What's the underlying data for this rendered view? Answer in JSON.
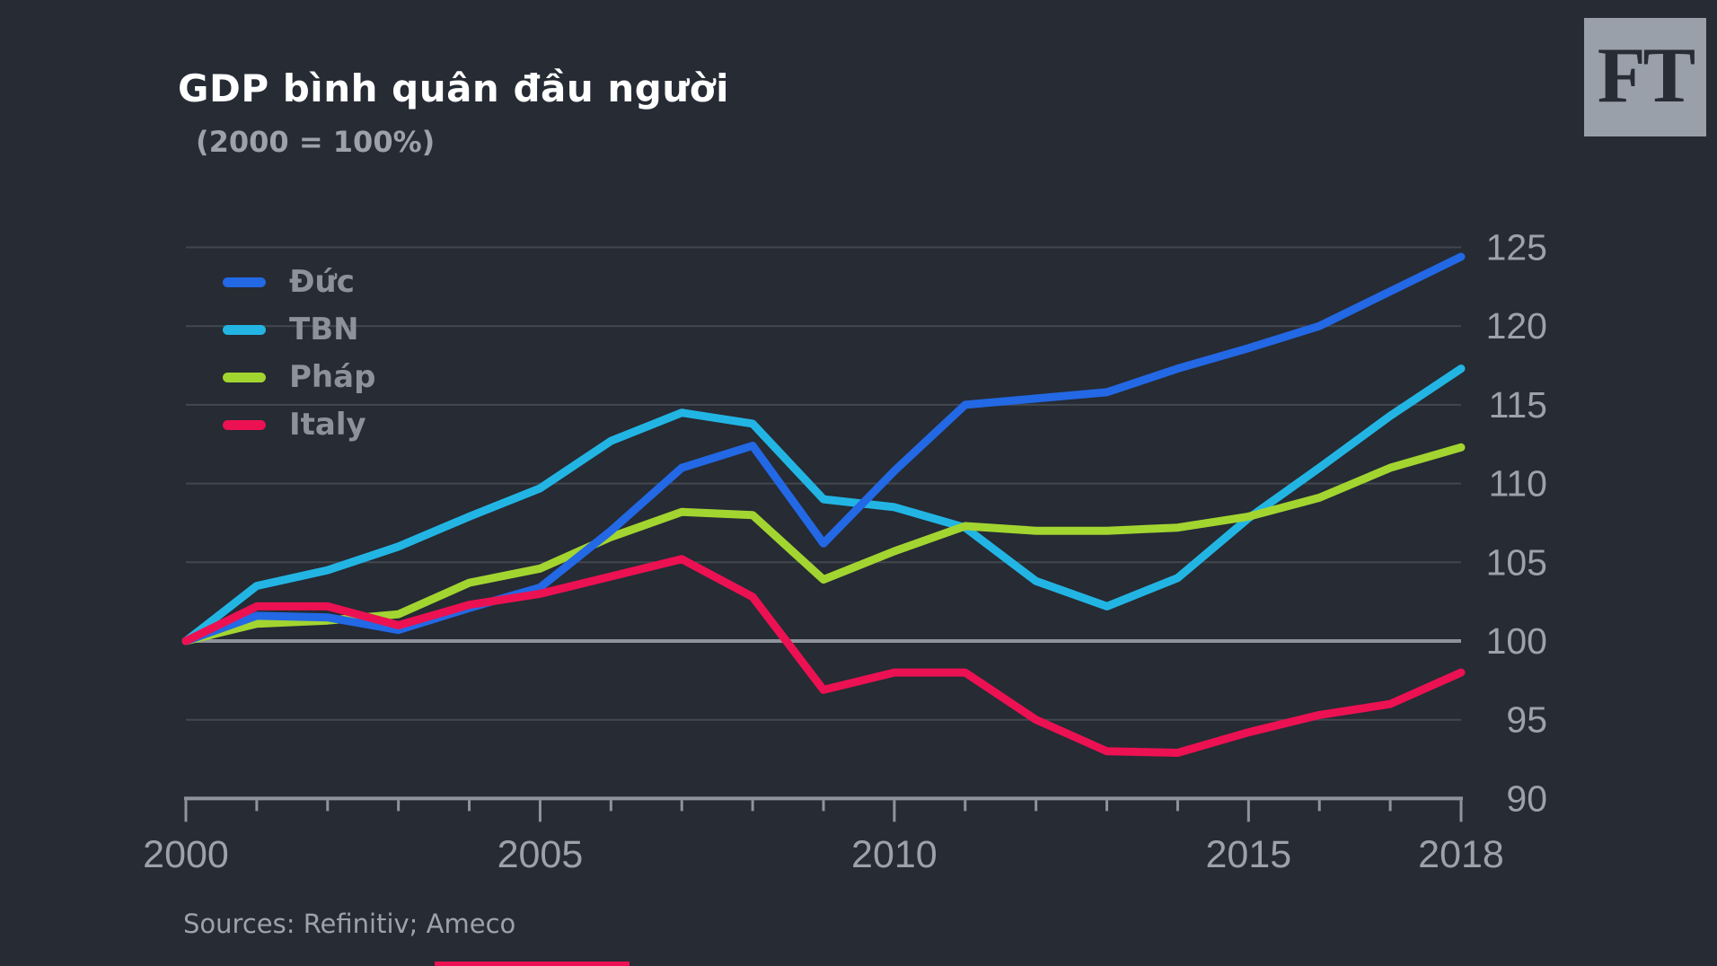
{
  "page": {
    "background": "#262b34"
  },
  "header": {
    "title": "GDP bình quân đầu người",
    "subtitle": "(2000 = 100%)"
  },
  "logo": {
    "text": "FT",
    "box_color": "#9aa0a9",
    "text_color": "#272c35"
  },
  "legend": [
    {
      "id": "duc",
      "label": "Đức",
      "color": "#2368e4"
    },
    {
      "id": "tbn",
      "label": "TBN",
      "color": "#22b5e4"
    },
    {
      "id": "phap",
      "label": "Pháp",
      "color": "#a3d530"
    },
    {
      "id": "italy",
      "label": "Italy",
      "color": "#ec1152"
    }
  ],
  "source": {
    "text": "Sources: Refinitiv; Ameco"
  },
  "progress_bar": {
    "color": "#ec1152"
  },
  "chart_data": {
    "type": "line",
    "title": "GDP bình quân đầu người",
    "subtitle": "(2000 = 100%)",
    "xlabel": "",
    "ylabel": "",
    "x": [
      2000,
      2001,
      2002,
      2003,
      2004,
      2005,
      2006,
      2007,
      2008,
      2009,
      2010,
      2011,
      2012,
      2013,
      2014,
      2015,
      2016,
      2017,
      2018
    ],
    "series": [
      {
        "id": "tbn",
        "name": "TBN",
        "color": "#22b5e4",
        "values": [
          100,
          103.5,
          104.5,
          106.0,
          107.9,
          109.7,
          112.7,
          114.5,
          113.8,
          109.0,
          108.5,
          107.2,
          103.8,
          102.2,
          104.0,
          107.8,
          111.0,
          114.3,
          117.3
        ]
      },
      {
        "id": "phap",
        "name": "Pháp",
        "color": "#a3d530",
        "values": [
          100,
          101.1,
          101.3,
          101.7,
          103.7,
          104.6,
          106.6,
          108.2,
          108.0,
          103.9,
          105.7,
          107.3,
          107.0,
          107.0,
          107.2,
          107.9,
          109.1,
          111.0,
          112.3
        ]
      },
      {
        "id": "duc",
        "name": "Đức",
        "color": "#2368e4",
        "values": [
          100,
          101.6,
          101.5,
          100.7,
          102.1,
          103.4,
          107.0,
          111.0,
          112.4,
          106.2,
          110.8,
          115.0,
          115.4,
          115.8,
          117.3,
          118.6,
          120.0,
          122.2,
          124.4
        ]
      },
      {
        "id": "italy",
        "name": "Italy",
        "color": "#ec1152",
        "values": [
          100,
          102.2,
          102.2,
          101.0,
          102.3,
          103.0,
          104.1,
          105.2,
          102.8,
          96.9,
          98.0,
          98.0,
          95.0,
          93.0,
          92.9,
          94.2,
          95.3,
          96.0,
          98.0
        ]
      }
    ],
    "x_ticks_major": [
      2000,
      2005,
      2010,
      2015,
      2018
    ],
    "x_ticks_minor_every": 1,
    "y_ticks": [
      125,
      120,
      115,
      110,
      105,
      100,
      95,
      90
    ],
    "baseline_value": 100,
    "xlim": [
      2000,
      2018
    ],
    "ylim": [
      90,
      126
    ],
    "grid": "horizontal",
    "legend_position": "top-left",
    "colors": {
      "grid": "#43484f",
      "axis_strong": "#8f949c",
      "tick_text": "#9da2aa"
    }
  }
}
